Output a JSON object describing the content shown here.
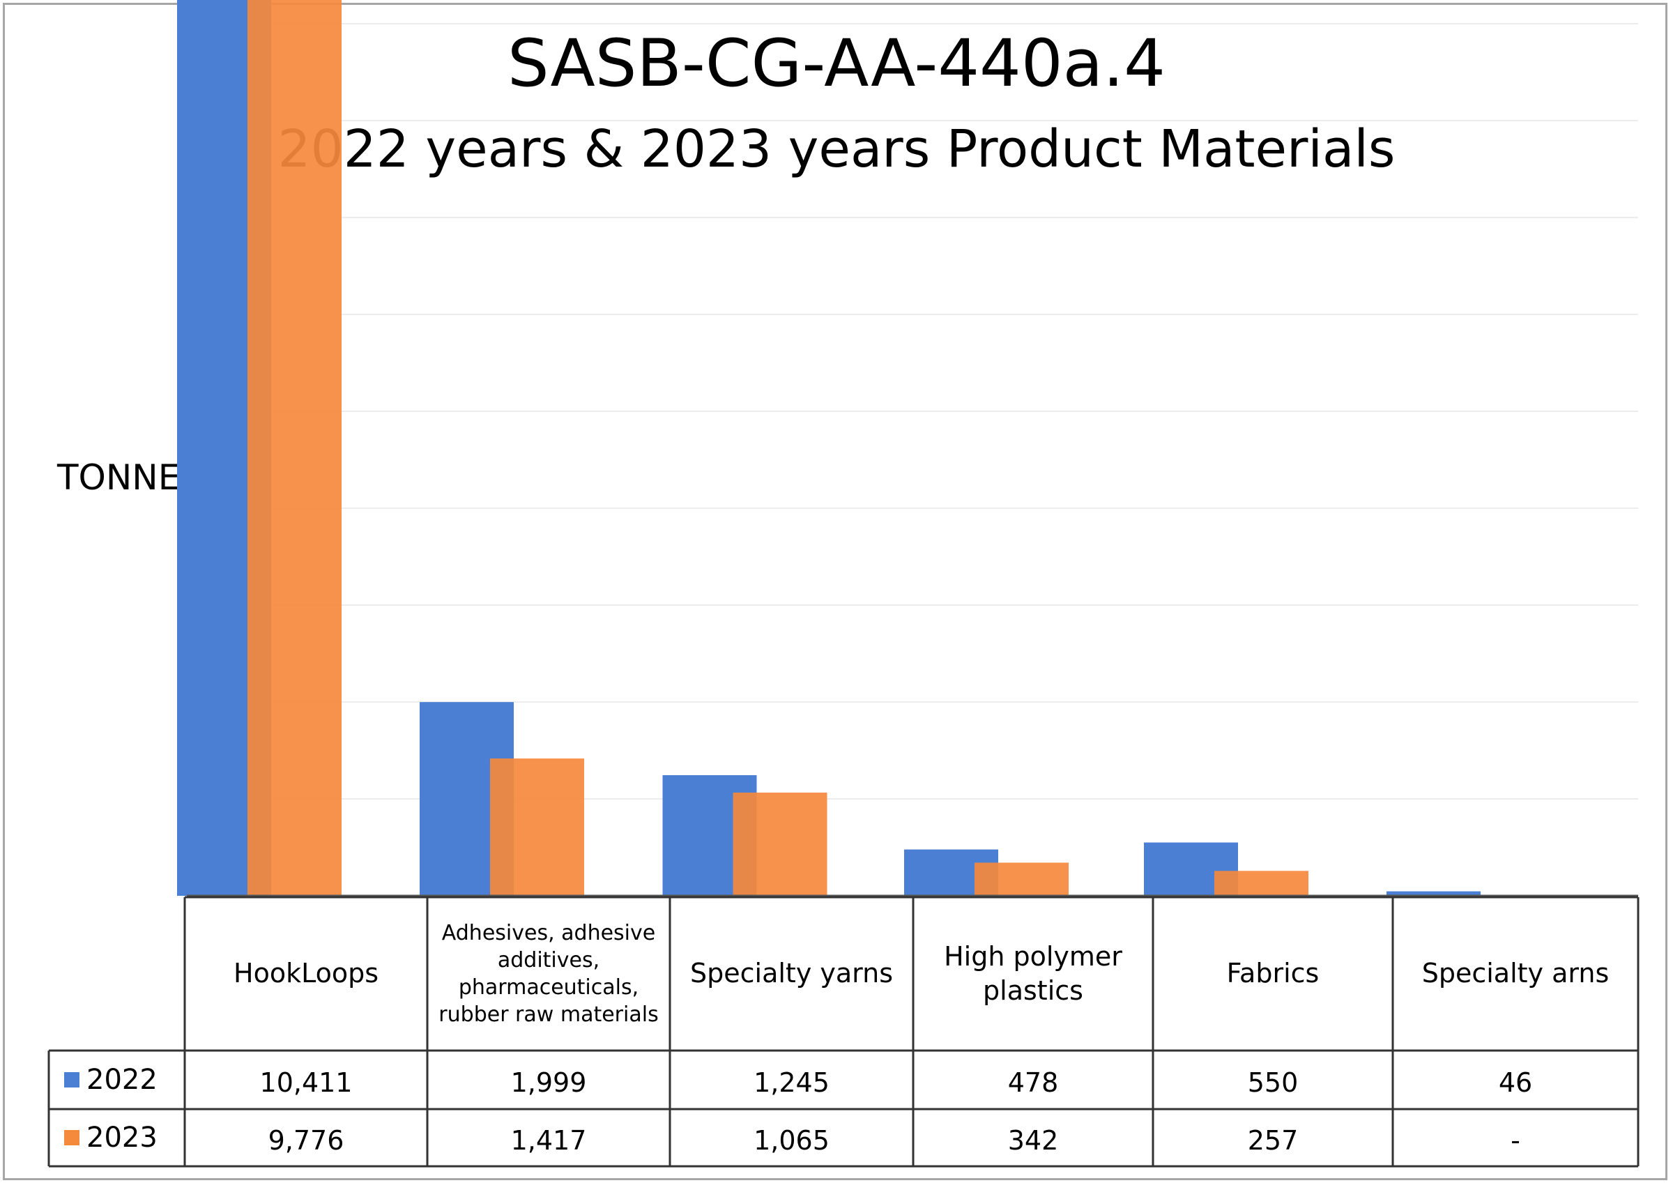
{
  "chart_data": {
    "type": "bar",
    "title": "SASB-CG-AA-440a.4",
    "subtitle": "2022 years & 2023 years Product Materials",
    "ylabel": "TONNE",
    "xlabel": "",
    "ylim": [
      0,
      12000
    ],
    "grid": true,
    "legend": "left of data table",
    "categories": [
      "HookLoops",
      "Adhesives, adhesive additives, pharmaceuticals, rubber raw materials",
      "Specialty yarns",
      "High polymer plastics",
      "Fabrics",
      "Specialty arns"
    ],
    "series": [
      {
        "name": "2022",
        "color": "#4a7fd4",
        "values": [
          10411,
          1999,
          1245,
          478,
          550,
          46
        ],
        "labels": [
          "10,411",
          "1,999",
          "1,245",
          "478",
          "550",
          "46"
        ]
      },
      {
        "name": "2023",
        "color": "#f5893c",
        "values": [
          9776,
          1417,
          1065,
          342,
          257,
          null
        ],
        "labels": [
          "9,776",
          "1,417",
          "1,065",
          "342",
          "257",
          "-"
        ]
      }
    ]
  }
}
